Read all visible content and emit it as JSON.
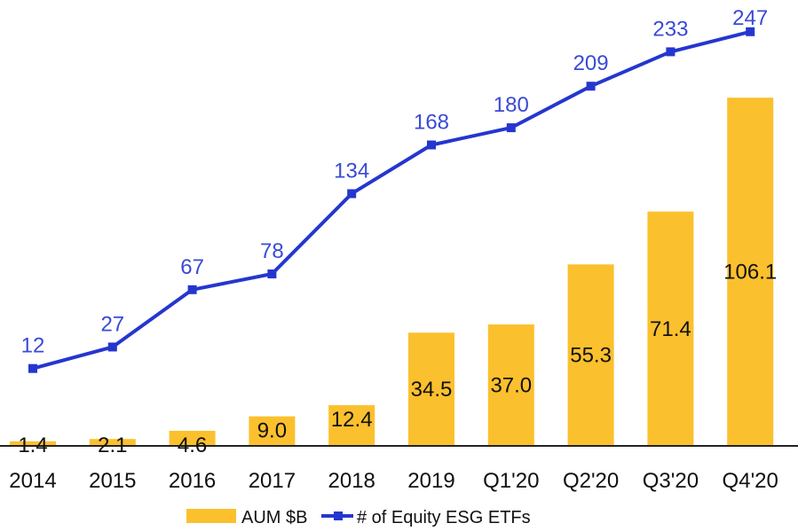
{
  "chart_data": {
    "type": "bar+line",
    "title": "",
    "categories": [
      "2014",
      "2015",
      "2016",
      "2017",
      "2018",
      "2019",
      "Q1'20",
      "Q2'20",
      "Q3'20",
      "Q4'20"
    ],
    "series": [
      {
        "name": "AUM $B",
        "kind": "bar",
        "color": "#FBC02D",
        "values": [
          1.4,
          2.1,
          4.6,
          9.0,
          12.4,
          34.5,
          37.0,
          55.3,
          71.4,
          106.1
        ],
        "labels": [
          "1.4",
          "2.1",
          "4.6",
          "9.0",
          "12.4",
          "34.5",
          "37.0",
          "55.3",
          "71.4",
          "106.1"
        ]
      },
      {
        "name": "# of Equity ESG ETFs",
        "kind": "line",
        "color": "#2536CF",
        "label_color": "#3A4AD6",
        "values": [
          12,
          27,
          67,
          78,
          134,
          168,
          180,
          209,
          233,
          247
        ],
        "labels": [
          "12",
          "27",
          "67",
          "78",
          "134",
          "168",
          "180",
          "209",
          "233",
          "247"
        ]
      }
    ],
    "bar_axis_range": [
      0,
      131
    ],
    "line_axis_range": [
      -42,
      258
    ],
    "grid": false,
    "legend_position": "bottom-center"
  }
}
